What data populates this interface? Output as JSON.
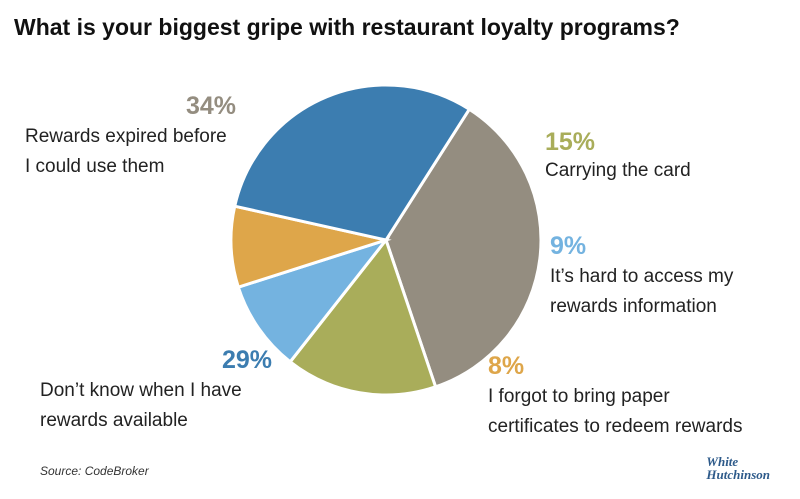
{
  "chart_data": {
    "type": "pie",
    "title": "What is your biggest gripe with restaurant loyalty programs?",
    "categories": [
      "Rewards expired before\nI could use them",
      "Carrying the card",
      "It’s hard to access my\nrewards information",
      "I forgot to bring paper\ncertificates to redeem rewards",
      "Don’t know when I have\nrewards available"
    ],
    "values": [
      34,
      15,
      9,
      8,
      29
    ],
    "value_labels": [
      "34%",
      "15%",
      "9%",
      "8%",
      "29%"
    ],
    "colors": [
      "#948d80",
      "#a9ad5a",
      "#74b3e0",
      "#dea64a",
      "#3c7db0"
    ],
    "source": "Source: CodeBroker",
    "logo": [
      "White",
      "Hutchinson"
    ]
  }
}
